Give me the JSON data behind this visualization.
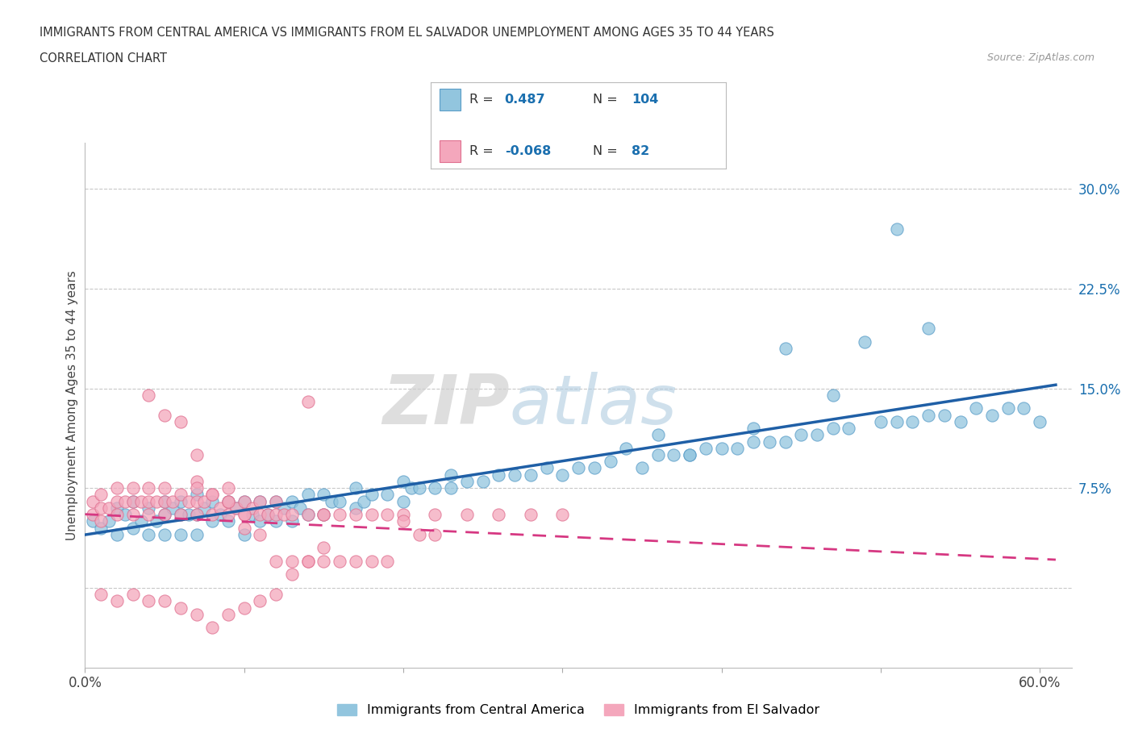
{
  "title_line1": "IMMIGRANTS FROM CENTRAL AMERICA VS IMMIGRANTS FROM EL SALVADOR UNEMPLOYMENT AMONG AGES 35 TO 44 YEARS",
  "title_line2": "CORRELATION CHART",
  "source": "Source: ZipAtlas.com",
  "ylabel": "Unemployment Among Ages 35 to 44 years",
  "xlim": [
    0.0,
    0.62
  ],
  "ylim": [
    -0.06,
    0.335
  ],
  "yticks_right": [
    0.0,
    0.075,
    0.15,
    0.225,
    0.3
  ],
  "ytick_labels_right": [
    "",
    "7.5%",
    "15.0%",
    "22.5%",
    "30.0%"
  ],
  "R_blue": "0.487",
  "N_blue": "104",
  "R_pink": "-0.068",
  "N_pink": "82",
  "blue_color": "#92c5de",
  "blue_edge_color": "#5a9dc8",
  "pink_color": "#f4a7bc",
  "pink_edge_color": "#e07090",
  "blue_line_color": "#1f5fa6",
  "pink_line_color": "#d63882",
  "legend_label_blue": "Immigrants from Central America",
  "legend_label_pink": "Immigrants from El Salvador",
  "watermark_zip": "ZIP",
  "watermark_atlas": "atlas",
  "background_color": "#ffffff",
  "grid_color": "#c8c8c8",
  "blue_scatter_x": [
    0.005,
    0.01,
    0.015,
    0.02,
    0.02,
    0.025,
    0.03,
    0.03,
    0.035,
    0.04,
    0.04,
    0.045,
    0.05,
    0.05,
    0.05,
    0.055,
    0.06,
    0.06,
    0.06,
    0.065,
    0.07,
    0.07,
    0.07,
    0.075,
    0.08,
    0.08,
    0.085,
    0.09,
    0.09,
    0.095,
    0.1,
    0.1,
    0.105,
    0.11,
    0.11,
    0.115,
    0.12,
    0.12,
    0.125,
    0.13,
    0.13,
    0.135,
    0.14,
    0.14,
    0.15,
    0.15,
    0.155,
    0.16,
    0.17,
    0.17,
    0.175,
    0.18,
    0.19,
    0.2,
    0.2,
    0.205,
    0.21,
    0.22,
    0.23,
    0.23,
    0.24,
    0.25,
    0.26,
    0.27,
    0.28,
    0.29,
    0.3,
    0.31,
    0.32,
    0.33,
    0.35,
    0.36,
    0.37,
    0.38,
    0.39,
    0.4,
    0.41,
    0.42,
    0.43,
    0.44,
    0.45,
    0.46,
    0.47,
    0.48,
    0.5,
    0.51,
    0.52,
    0.53,
    0.54,
    0.55,
    0.56,
    0.57,
    0.58,
    0.59,
    0.6,
    0.53,
    0.51,
    0.49,
    0.47,
    0.44,
    0.42,
    0.38,
    0.36,
    0.34
  ],
  "blue_scatter_y": [
    0.05,
    0.045,
    0.05,
    0.04,
    0.06,
    0.055,
    0.045,
    0.065,
    0.05,
    0.04,
    0.06,
    0.05,
    0.04,
    0.055,
    0.065,
    0.06,
    0.04,
    0.055,
    0.065,
    0.055,
    0.04,
    0.055,
    0.07,
    0.06,
    0.05,
    0.065,
    0.055,
    0.05,
    0.065,
    0.06,
    0.04,
    0.065,
    0.055,
    0.05,
    0.065,
    0.055,
    0.05,
    0.065,
    0.06,
    0.05,
    0.065,
    0.06,
    0.055,
    0.07,
    0.055,
    0.07,
    0.065,
    0.065,
    0.06,
    0.075,
    0.065,
    0.07,
    0.07,
    0.065,
    0.08,
    0.075,
    0.075,
    0.075,
    0.075,
    0.085,
    0.08,
    0.08,
    0.085,
    0.085,
    0.085,
    0.09,
    0.085,
    0.09,
    0.09,
    0.095,
    0.09,
    0.1,
    0.1,
    0.1,
    0.105,
    0.105,
    0.105,
    0.11,
    0.11,
    0.11,
    0.115,
    0.115,
    0.12,
    0.12,
    0.125,
    0.125,
    0.125,
    0.13,
    0.13,
    0.125,
    0.135,
    0.13,
    0.135,
    0.135,
    0.125,
    0.195,
    0.27,
    0.185,
    0.145,
    0.18,
    0.12,
    0.1,
    0.115,
    0.105
  ],
  "pink_scatter_x": [
    0.005,
    0.005,
    0.01,
    0.01,
    0.01,
    0.015,
    0.02,
    0.02,
    0.02,
    0.025,
    0.03,
    0.03,
    0.03,
    0.035,
    0.04,
    0.04,
    0.04,
    0.045,
    0.05,
    0.05,
    0.05,
    0.055,
    0.06,
    0.06,
    0.065,
    0.07,
    0.07,
    0.07,
    0.075,
    0.08,
    0.08,
    0.085,
    0.09,
    0.09,
    0.09,
    0.095,
    0.1,
    0.1,
    0.105,
    0.11,
    0.11,
    0.115,
    0.12,
    0.12,
    0.125,
    0.13,
    0.14,
    0.14,
    0.15,
    0.15,
    0.16,
    0.17,
    0.18,
    0.19,
    0.2,
    0.22,
    0.24,
    0.26,
    0.28,
    0.3,
    0.04,
    0.05,
    0.06,
    0.07,
    0.07,
    0.08,
    0.09,
    0.1,
    0.1,
    0.11,
    0.12,
    0.13,
    0.14,
    0.15,
    0.16,
    0.17,
    0.18,
    0.19,
    0.2,
    0.21,
    0.22
  ],
  "pink_scatter_y": [
    0.055,
    0.065,
    0.05,
    0.06,
    0.07,
    0.06,
    0.055,
    0.065,
    0.075,
    0.065,
    0.055,
    0.065,
    0.075,
    0.065,
    0.055,
    0.065,
    0.075,
    0.065,
    0.055,
    0.065,
    0.075,
    0.065,
    0.055,
    0.07,
    0.065,
    0.055,
    0.065,
    0.08,
    0.065,
    0.055,
    0.07,
    0.06,
    0.055,
    0.065,
    0.075,
    0.06,
    0.055,
    0.065,
    0.06,
    0.055,
    0.065,
    0.055,
    0.055,
    0.065,
    0.055,
    0.055,
    0.055,
    0.14,
    0.055,
    0.055,
    0.055,
    0.055,
    0.055,
    0.055,
    0.055,
    0.055,
    0.055,
    0.055,
    0.055,
    0.055,
    0.145,
    0.13,
    0.125,
    0.1,
    0.075,
    0.07,
    0.065,
    0.055,
    0.045,
    0.04,
    0.02,
    0.02,
    0.02,
    0.02,
    0.02,
    0.02,
    0.02,
    0.02,
    0.05,
    0.04,
    0.04
  ],
  "pink_extra_x": [
    0.05,
    0.07,
    0.08,
    0.09,
    0.1,
    0.11,
    0.12,
    0.13,
    0.14,
    0.15,
    0.06,
    0.04,
    0.03,
    0.02,
    0.01
  ],
  "pink_extra_y": [
    -0.01,
    -0.02,
    -0.03,
    -0.02,
    -0.015,
    -0.01,
    -0.005,
    0.01,
    0.02,
    0.03,
    -0.015,
    -0.01,
    -0.005,
    -0.01,
    -0.005
  ]
}
